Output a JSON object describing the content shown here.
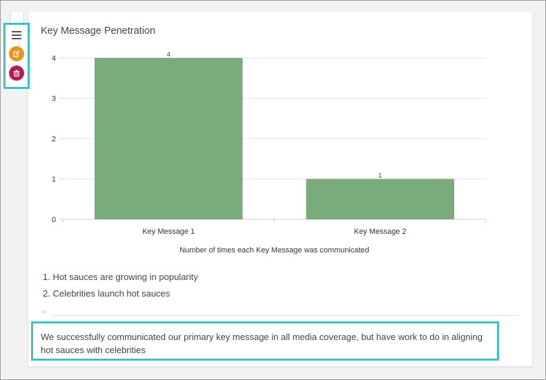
{
  "toolbar": {
    "menu_icon": "hamburger-menu-icon",
    "edit_icon": "pencil-edit-icon",
    "delete_icon": "trash-icon",
    "edit_color": "#e8951a",
    "delete_color": "#b81c56",
    "highlight_color": "#3cc4c4"
  },
  "report": {
    "title": "Key Message Penetration",
    "key_points": [
      "Hot sauces are growing in popularity",
      "Celebrities launch hot sauces"
    ],
    "quote_icon": "quote-icon",
    "summary_text": "We successfully communicated our primary key message in all media coverage, but have work to do in aligning hot sauces with celebrities"
  },
  "chart_data": {
    "type": "bar",
    "title": "Key Message Penetration",
    "categories": [
      "Key Message 1",
      "Key Message 2"
    ],
    "values": [
      4,
      1
    ],
    "data_labels": [
      "4",
      "1"
    ],
    "xlabel": "Number of times each Key Message was communicated",
    "ylabel": "",
    "ylim": [
      0,
      4
    ],
    "yticks": [
      0,
      1,
      2,
      3,
      4
    ],
    "grid": true,
    "bar_color": "#7aab7a"
  }
}
